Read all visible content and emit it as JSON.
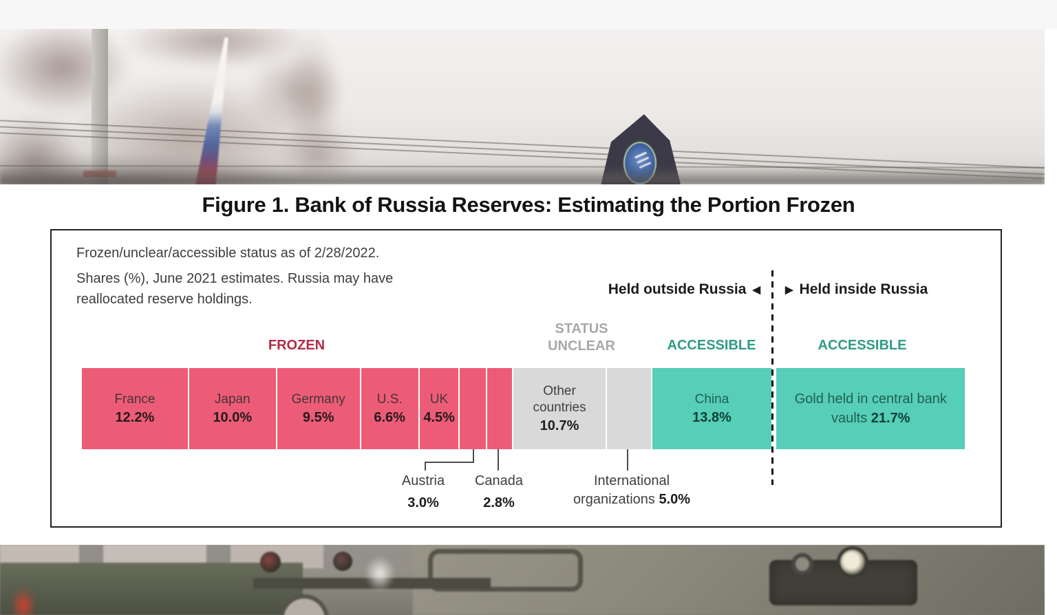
{
  "figure": {
    "title": "Figure 1. Bank of Russia Reserves: Estimating the Portion Frozen",
    "note_lines": [
      "Frozen/unclear/accessible status as of 2/28/2022.",
      "Shares (%), June 2021 estimates. Russia may have",
      "reallocated reserve holdings."
    ],
    "held_outside_label": "Held outside Russia",
    "held_inside_label": "Held inside Russia",
    "outside_arrow": "◀",
    "inside_arrow": "▶",
    "group_labels": {
      "frozen": "FROZEN",
      "status_unclear_line1": "STATUS",
      "status_unclear_line2": "UNCLEAR",
      "accessible_outside": "ACCESSIBLE",
      "accessible_inside": "ACCESSIBLE"
    },
    "callouts": {
      "austria_name": "Austria",
      "austria_value": "3.0%",
      "canada_name": "Canada",
      "canada_value": "2.8%",
      "intl_line1": "International",
      "intl_line2_prefix": "organizations ",
      "intl_value": "5.0%"
    },
    "colors": {
      "frozen_fill": "#ED5C76",
      "status_unclear_fill": "#D9D9D9",
      "accessible_fill": "#57CEB7",
      "frozen_label": "#B02D46",
      "status_unclear_label": "#A8A8A8",
      "accessible_label": "#2E9C86"
    }
  },
  "chart_data": {
    "type": "bar",
    "variant": "horizontal-stacked-percentage",
    "title": "Figure 1. Bank of Russia Reserves: Estimating the Portion Frozen",
    "unit": "%",
    "status_as_of": "2/28/2022",
    "share_estimates": "June 2021",
    "legend_position": "labels above and inside bar",
    "segments": [
      {
        "name": "France",
        "value": 12.2,
        "status": "frozen",
        "held": "outside Russia",
        "label_style": "stacked"
      },
      {
        "name": "Japan",
        "value": 10.0,
        "status": "frozen",
        "held": "outside Russia",
        "label_style": "stacked"
      },
      {
        "name": "Germany",
        "value": 9.5,
        "status": "frozen",
        "held": "outside Russia",
        "label_style": "stacked"
      },
      {
        "name": "U.S.",
        "value": 6.6,
        "status": "frozen",
        "held": "outside Russia",
        "label_style": "stacked"
      },
      {
        "name": "UK",
        "value": 4.5,
        "status": "frozen",
        "held": "outside Russia",
        "label_style": "stacked"
      },
      {
        "name": "Austria",
        "value": 3.0,
        "status": "frozen",
        "held": "outside Russia",
        "label_style": "below"
      },
      {
        "name": "Canada",
        "value": 2.8,
        "status": "frozen",
        "held": "outside Russia",
        "label_style": "below"
      },
      {
        "name": "Other countries",
        "value": 10.7,
        "status": "status-unclear",
        "held": "outside Russia",
        "label_style": "stacked"
      },
      {
        "name": "International organizations",
        "value": 5.0,
        "status": "status-unclear",
        "held": "outside Russia",
        "label_style": "below"
      },
      {
        "name": "China",
        "value": 13.8,
        "status": "accessible",
        "held": "outside Russia",
        "label_style": "stacked"
      },
      {
        "name": "Gold held in central bank vaults",
        "value": 21.7,
        "status": "accessible",
        "held": "inside Russia",
        "label_style": "inline",
        "divider_before": true
      }
    ]
  }
}
